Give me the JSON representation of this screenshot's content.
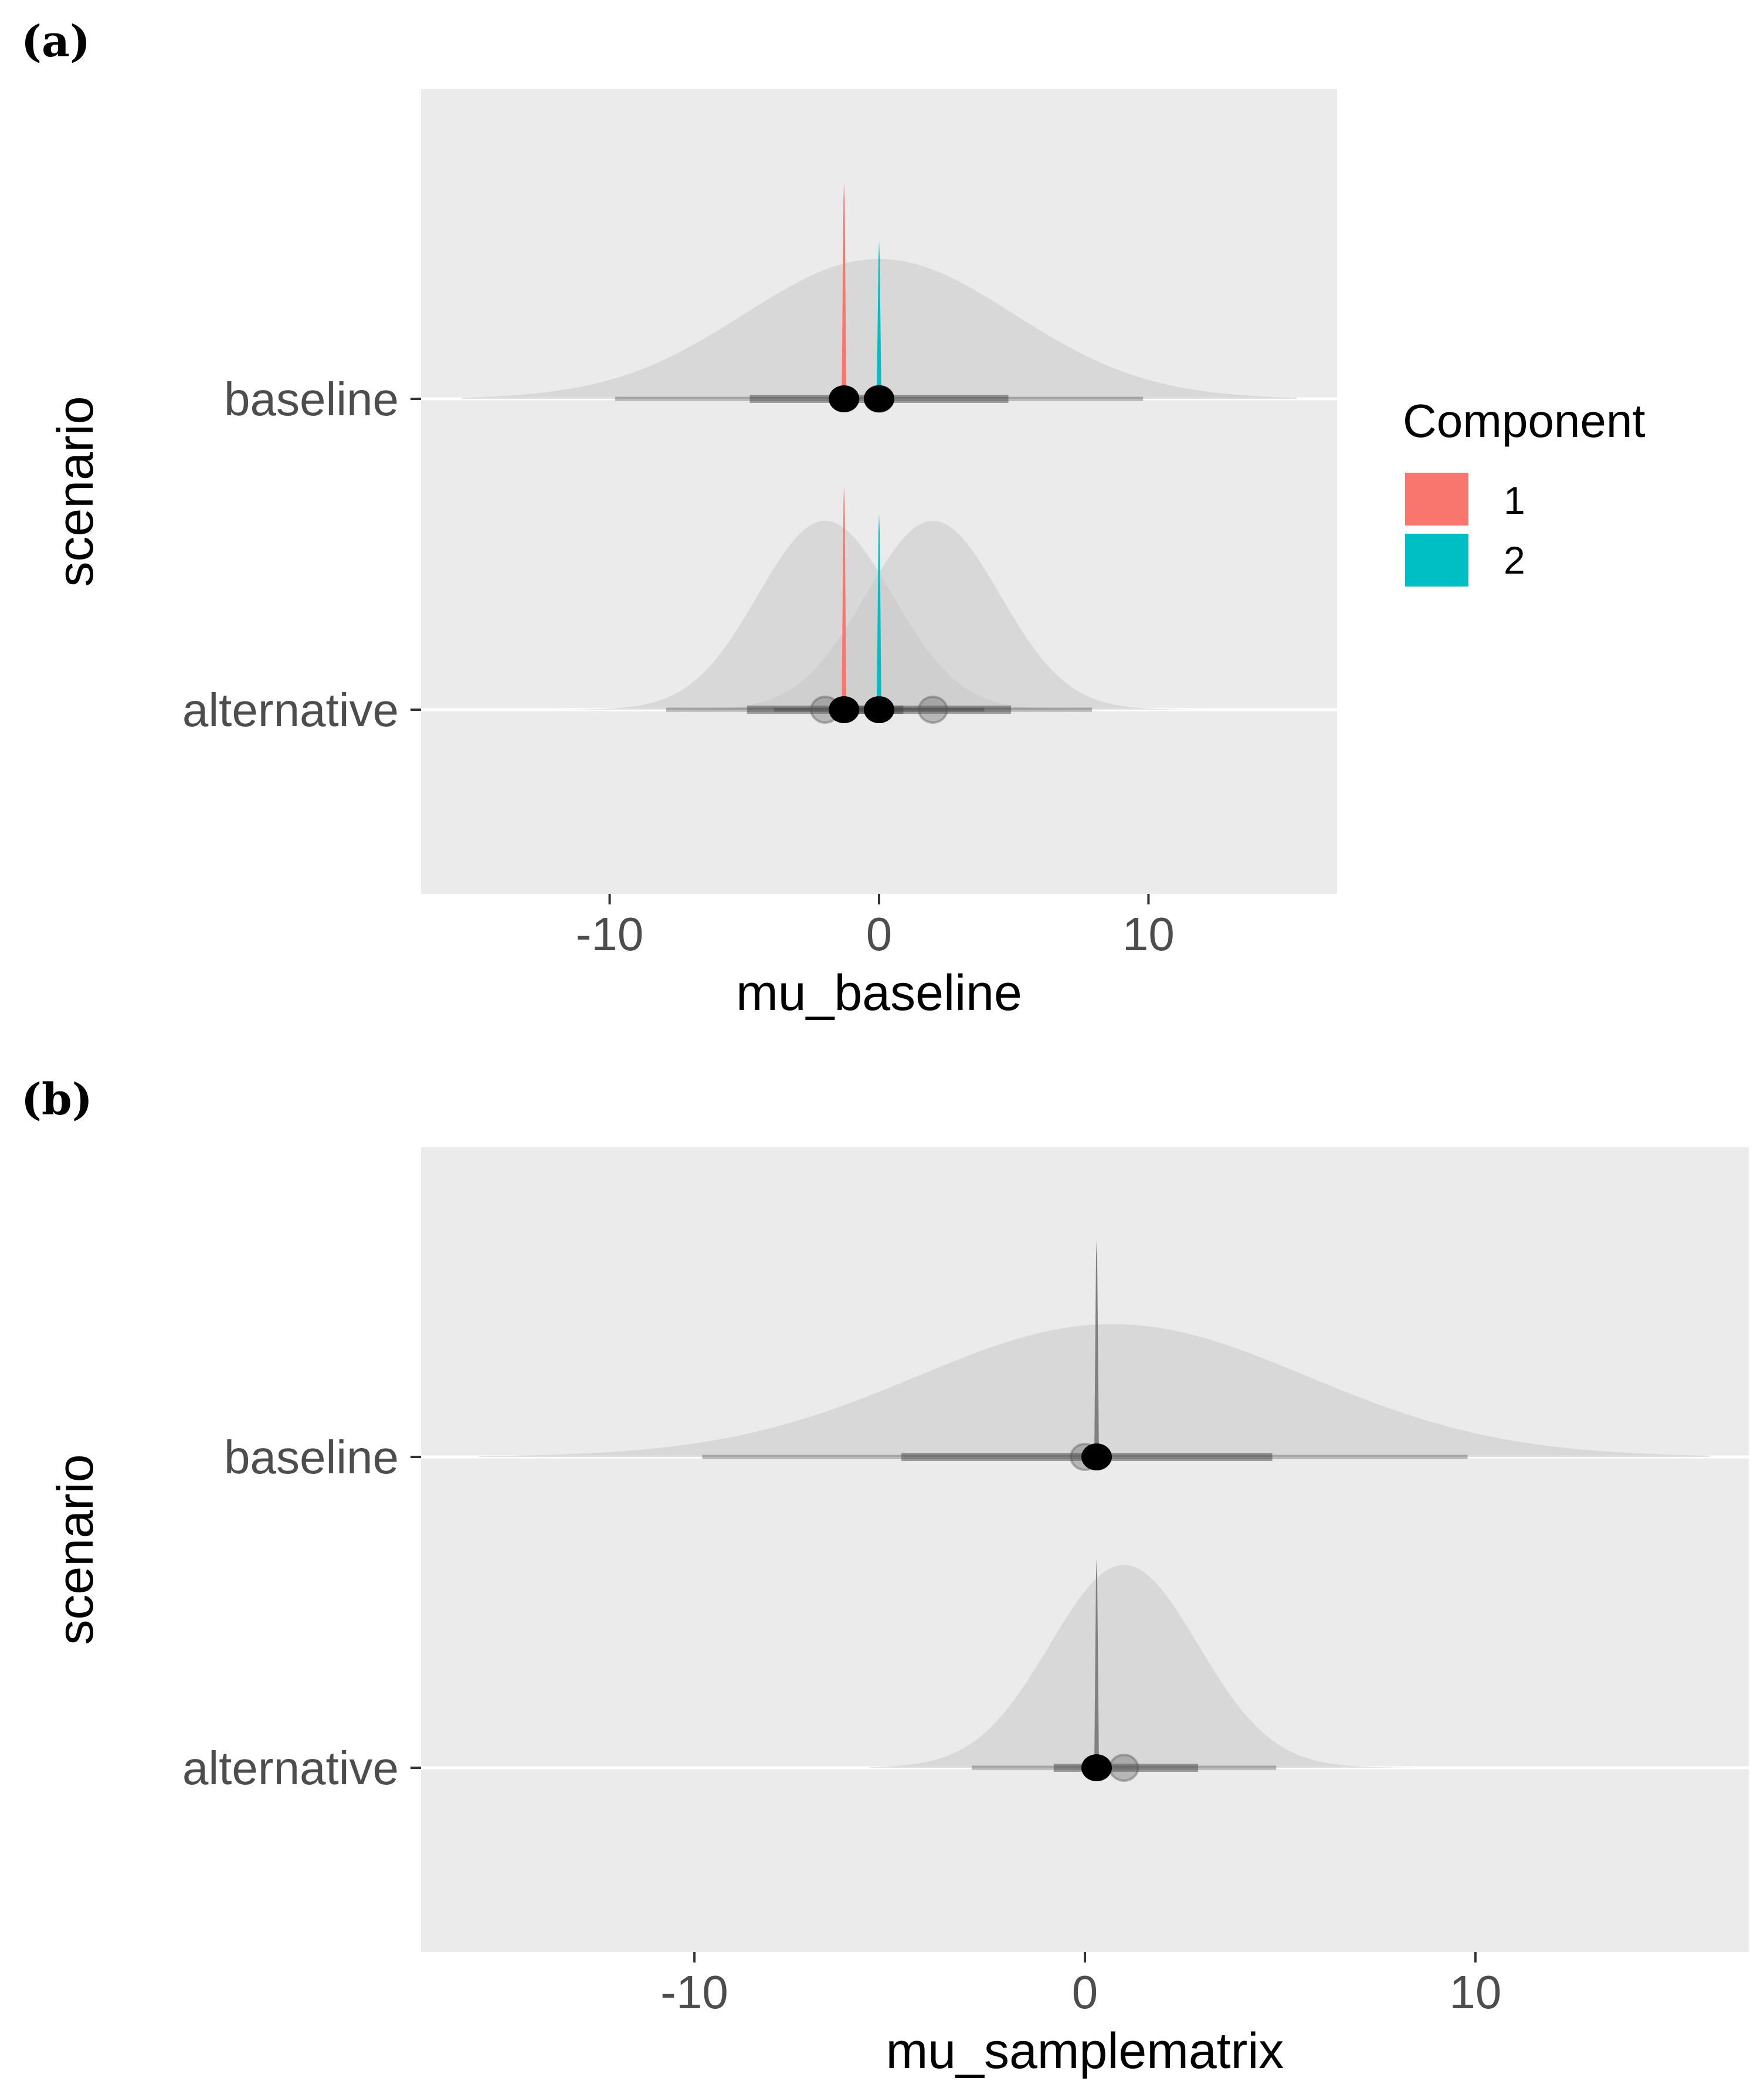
{
  "colors": {
    "panel_bg": "#EBEBEB",
    "grid": "#FFFFFF",
    "prior_fill": "#C8C8C8",
    "interval": "#3A3A3A",
    "point": "#000000",
    "component_1": "#F8766D",
    "component_2": "#00BFC4"
  },
  "chart_data": [
    {
      "panel_label": "(a)",
      "type": "halfeye",
      "xlabel": "mu_baseline",
      "ylabel": "scenario",
      "xlim": [
        -17,
        17
      ],
      "x_ticks": [
        -10,
        0,
        10
      ],
      "x_tick_labels": [
        "-10",
        "0",
        "10"
      ],
      "categories": [
        "baseline",
        "alternative"
      ],
      "legend": {
        "title": "Component",
        "position": "right",
        "entries": [
          {
            "label": "1",
            "color": "#F8766D"
          },
          {
            "label": "2",
            "color": "#00BFC4"
          }
        ]
      },
      "priors": [
        {
          "scenario": "baseline",
          "mean": 0,
          "sd": 5,
          "range": [
            -15.5,
            15.5
          ],
          "height": 1.0,
          "point": 0,
          "interval_66": [
            -4.8,
            4.8
          ],
          "interval_95": [
            -9.8,
            9.8
          ]
        },
        {
          "scenario": "alternative",
          "mean": -2,
          "sd": 2.5,
          "range": [
            -12,
            8
          ],
          "height": 1.35,
          "point": -2,
          "interval_66": [
            -4.9,
            0.9
          ],
          "interval_95": [
            -7.9,
            3.9
          ]
        },
        {
          "scenario": "alternative",
          "mean": 2,
          "sd": 2.5,
          "range": [
            -8,
            12
          ],
          "height": 1.35,
          "point": 2,
          "interval_66": [
            -0.9,
            4.9
          ],
          "interval_95": [
            -3.9,
            7.9
          ]
        }
      ],
      "posteriors": [
        {
          "scenario": "baseline",
          "component": "1",
          "mean": -1.3,
          "height": 1.55
        },
        {
          "scenario": "baseline",
          "component": "2",
          "mean": 0.0,
          "height": 1.13
        },
        {
          "scenario": "alternative",
          "component": "1",
          "mean": -1.3,
          "height": 1.6
        },
        {
          "scenario": "alternative",
          "component": "2",
          "mean": 0.0,
          "height": 1.4
        }
      ]
    },
    {
      "panel_label": "(b)",
      "type": "halfeye",
      "xlabel": "mu_samplematrix",
      "ylabel": "scenario",
      "xlim": [
        -17,
        17
      ],
      "x_ticks": [
        -10,
        0,
        10
      ],
      "x_tick_labels": [
        "-10",
        "0",
        "10"
      ],
      "categories": [
        "baseline",
        "alternative"
      ],
      "priors": [
        {
          "scenario": "baseline",
          "mean": 0.7,
          "sd": 5,
          "range": [
            -15.5,
            16
          ],
          "height": 0.95,
          "point": 0,
          "interval_66": [
            -4.7,
            4.8
          ],
          "interval_95": [
            -9.8,
            9.8
          ]
        },
        {
          "scenario": "alternative",
          "mean": 1.0,
          "sd": 1.9,
          "range": [
            -5.5,
            8.5
          ],
          "height": 1.45,
          "point": 1.0,
          "interval_66": [
            -0.8,
            2.9
          ],
          "interval_95": [
            -2.9,
            4.9
          ]
        }
      ],
      "posteriors": [
        {
          "scenario": "baseline",
          "component": "1",
          "mean": 0.3,
          "height": 1.55
        },
        {
          "scenario": "alternative",
          "component": "1",
          "mean": 0.3,
          "height": 1.5
        }
      ]
    }
  ]
}
